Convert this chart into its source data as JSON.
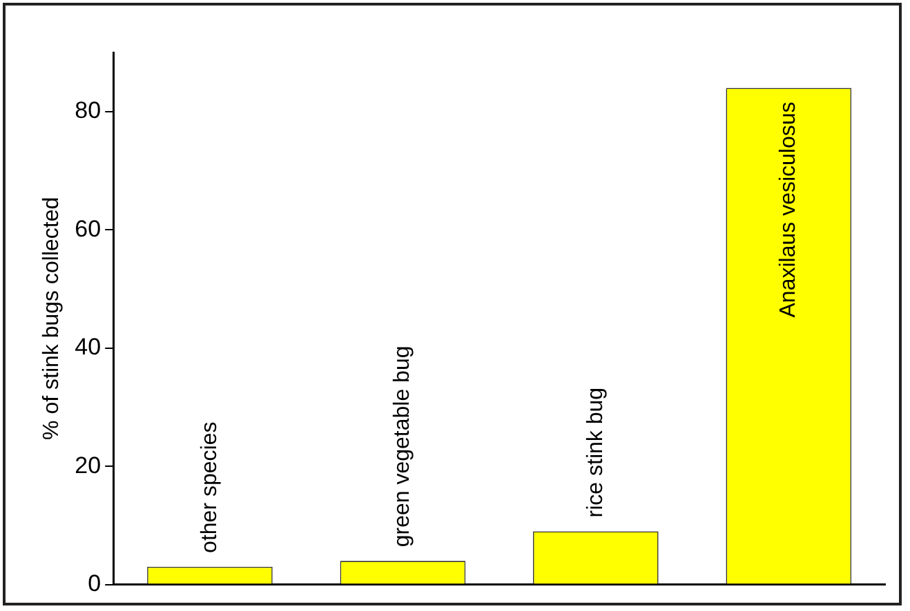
{
  "chart_data": {
    "type": "bar",
    "ylabel": "% of stink bugs collected",
    "categories": [
      "other species",
      "green vegetable bug",
      "rice stink bug",
      "Anaxilaus vesiculosus"
    ],
    "values": [
      3,
      4,
      9,
      84
    ],
    "color": "#ffff00",
    "ylim": [
      0,
      90
    ],
    "yticks": [
      0,
      20,
      40,
      60,
      80
    ],
    "tick_labels": "y",
    "grid": false,
    "legend": false
  }
}
